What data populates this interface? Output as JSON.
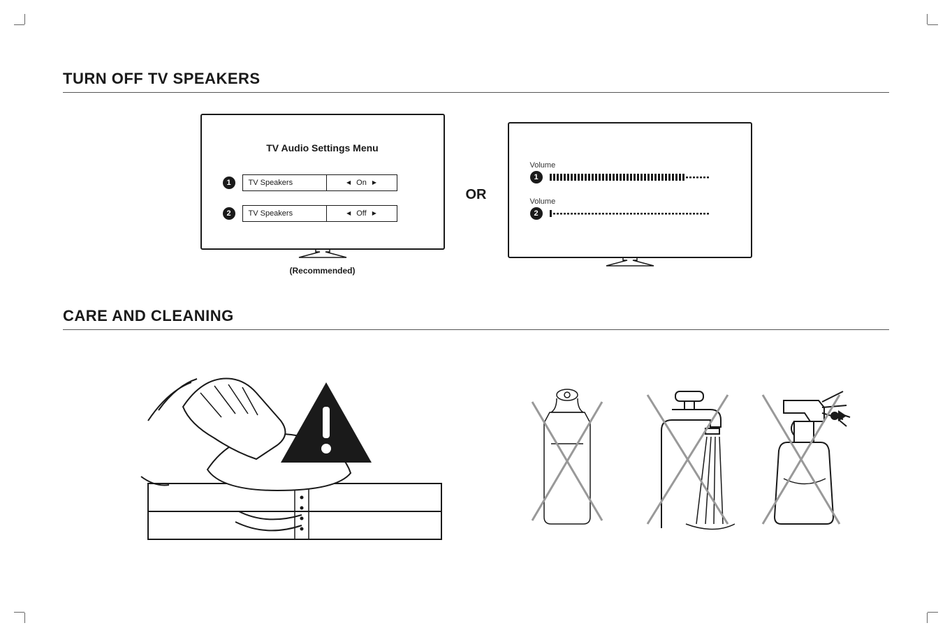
{
  "section1": {
    "title": "TURN OFF TV SPEAKERS",
    "menu_title": "TV Audio Settings Menu",
    "rows": [
      {
        "num": "1",
        "label": "TV Speakers",
        "value": "On"
      },
      {
        "num": "2",
        "label": "TV Speakers",
        "value": "Off"
      }
    ],
    "recommended": "(Recommended)",
    "or": "OR",
    "volume_label": "Volume",
    "volume_rows": [
      {
        "num": "1",
        "fill": 0.85
      },
      {
        "num": "2",
        "fill": 0.02
      }
    ],
    "colors": {
      "stroke": "#1a1a1a",
      "bar_empty": "#1a1a1a"
    }
  },
  "section2": {
    "title": "CARE AND CLEANING",
    "prohibit_icons": [
      "spray-can-icon",
      "faucet-icon",
      "spray-bottle-icon"
    ]
  },
  "styling": {
    "bg": "#ffffff",
    "text": "#1a1a1a",
    "rule": "#555555",
    "cross_color": "#999999"
  }
}
